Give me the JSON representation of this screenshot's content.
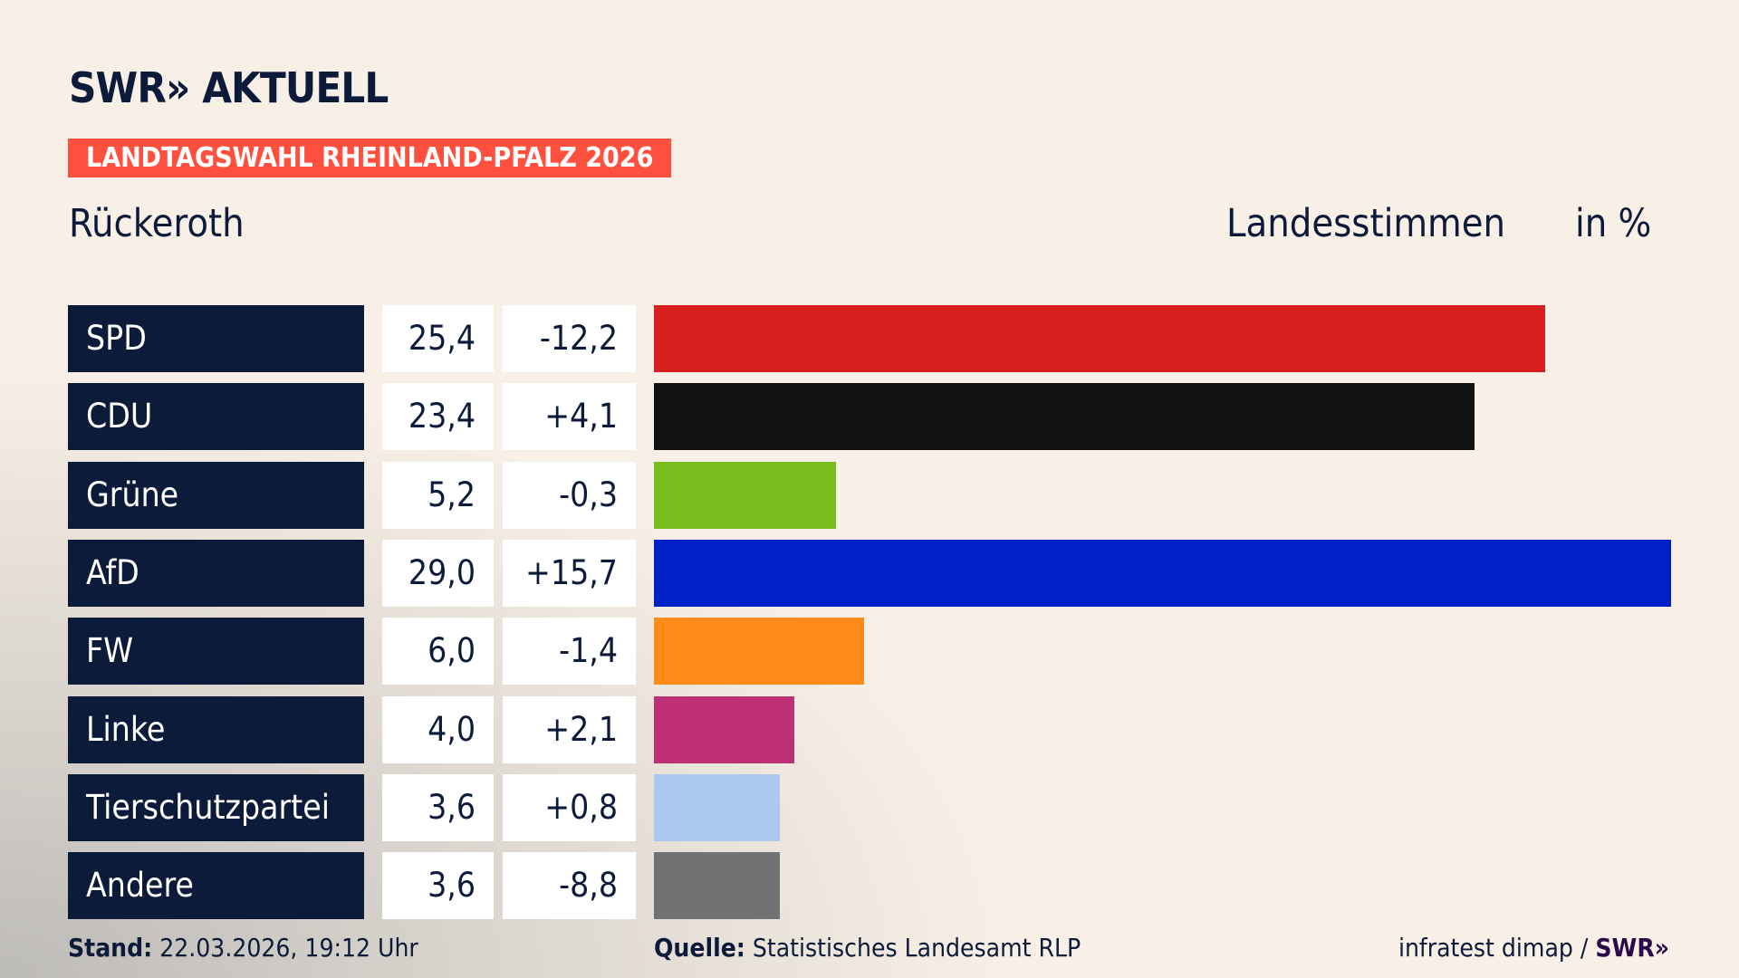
{
  "header": {
    "logo": "SWR» AKTUELL",
    "banner": "LANDTAGSWAHL RHEINLAND-PFALZ 2026",
    "region": "Rückeroth",
    "column_label": "Landesstimmen",
    "unit": "in %"
  },
  "chart_data": {
    "type": "bar",
    "orientation": "horizontal",
    "xlim": [
      0,
      29.0
    ],
    "categories": [
      "SPD",
      "CDU",
      "Grüne",
      "AfD",
      "FW",
      "Linke",
      "Tierschutzpartei",
      "Andere"
    ],
    "values": [
      25.4,
      23.4,
      5.2,
      29.0,
      6.0,
      4.0,
      3.6,
      3.6
    ],
    "value_labels": [
      "25,4",
      "23,4",
      "5,2",
      "29,0",
      "6,0",
      "4,0",
      "3,6",
      "3,6"
    ],
    "change_labels": [
      "-12,2",
      "+4,1",
      "-0,3",
      "+15,7",
      "-1,4",
      "+2,1",
      "+0,8",
      "-8,8"
    ],
    "colors": [
      "#d71f1f",
      "#121212",
      "#79bd1c",
      "#0021c8",
      "#ff8c1a",
      "#bd3075",
      "#abc8ef",
      "#707274"
    ]
  },
  "footer": {
    "stand_label": "Stand:",
    "stand_value": "22.03.2026, 19:12 Uhr",
    "source_label": "Quelle:",
    "source_value": "Statistisches Landesamt RLP",
    "credit": "infratest dimap /",
    "credit_logo": "SWR»"
  }
}
